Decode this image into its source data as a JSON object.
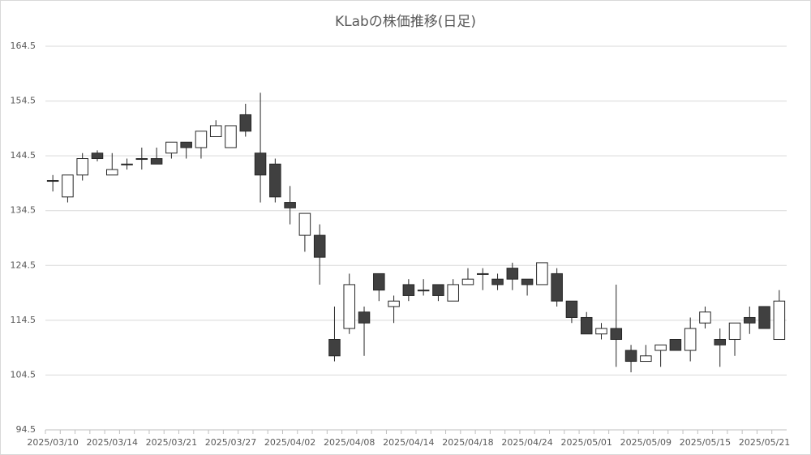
{
  "chart_data": {
    "type": "candlestick",
    "title": "KLabの株価推移(日足)",
    "categories": [
      "2025/03/10",
      null,
      null,
      null,
      "2025/03/14",
      null,
      null,
      null,
      "2025/03/21",
      null,
      null,
      null,
      "2025/03/27",
      null,
      null,
      null,
      "2025/04/02",
      null,
      null,
      null,
      "2025/04/08",
      null,
      null,
      null,
      "2025/04/14",
      null,
      null,
      null,
      "2025/04/18",
      null,
      null,
      null,
      "2025/04/24",
      null,
      null,
      null,
      "2025/05/01",
      null,
      null,
      null,
      "2025/05/09",
      null,
      null,
      null,
      "2025/05/15",
      null,
      null,
      null,
      "2025/05/21",
      null
    ],
    "open": [
      140,
      137,
      141,
      145,
      141,
      143,
      144,
      144,
      145,
      147,
      146,
      148,
      146,
      152,
      145,
      143,
      136,
      130,
      130,
      111,
      113,
      116,
      123,
      117,
      121,
      120,
      121,
      118,
      121,
      123,
      122,
      124,
      122,
      121,
      123,
      118,
      115,
      112,
      113,
      109,
      107,
      109,
      111,
      109,
      114,
      111,
      111,
      115,
      117,
      111
    ],
    "high": [
      141,
      141,
      145,
      145.5,
      145,
      144,
      146,
      146,
      147,
      147,
      149,
      151,
      150,
      154,
      156,
      144,
      139,
      134,
      132,
      117,
      123,
      117,
      123,
      119,
      122,
      122,
      121,
      122,
      124,
      124,
      123,
      125,
      122,
      125,
      124,
      118,
      116,
      114,
      121,
      110,
      110,
      110,
      111,
      115,
      117,
      113,
      114,
      117,
      117,
      120
    ],
    "low": [
      138,
      136,
      140,
      143.5,
      141,
      142,
      142,
      143,
      144,
      144,
      144,
      148,
      146,
      148,
      136,
      136,
      132,
      127,
      121,
      107,
      112,
      108,
      118,
      114,
      118,
      119,
      118,
      118,
      121,
      120,
      120,
      120,
      119,
      121,
      117,
      114,
      112,
      111,
      106,
      105,
      107,
      106,
      109,
      107,
      113,
      106,
      108,
      112,
      113,
      111
    ],
    "close": [
      140,
      141,
      144,
      144,
      142,
      143,
      144,
      143,
      147,
      146,
      149,
      150,
      150,
      149,
      141,
      137,
      135,
      134,
      126,
      108,
      121,
      114,
      120,
      118,
      119,
      120,
      119,
      121,
      122,
      123,
      121,
      122,
      121,
      125,
      118,
      115,
      112,
      113,
      111,
      107,
      108,
      110,
      109,
      113,
      116,
      110,
      114,
      114,
      113,
      118
    ],
    "up_color": "#ffffff",
    "down_color": "#404040",
    "edge_color": "#262626",
    "ylim": [
      94.5,
      164.5
    ],
    "yticks": [
      94.5,
      104.5,
      114.5,
      124.5,
      134.5,
      144.5,
      154.5,
      164.5
    ],
    "grid": true
  }
}
